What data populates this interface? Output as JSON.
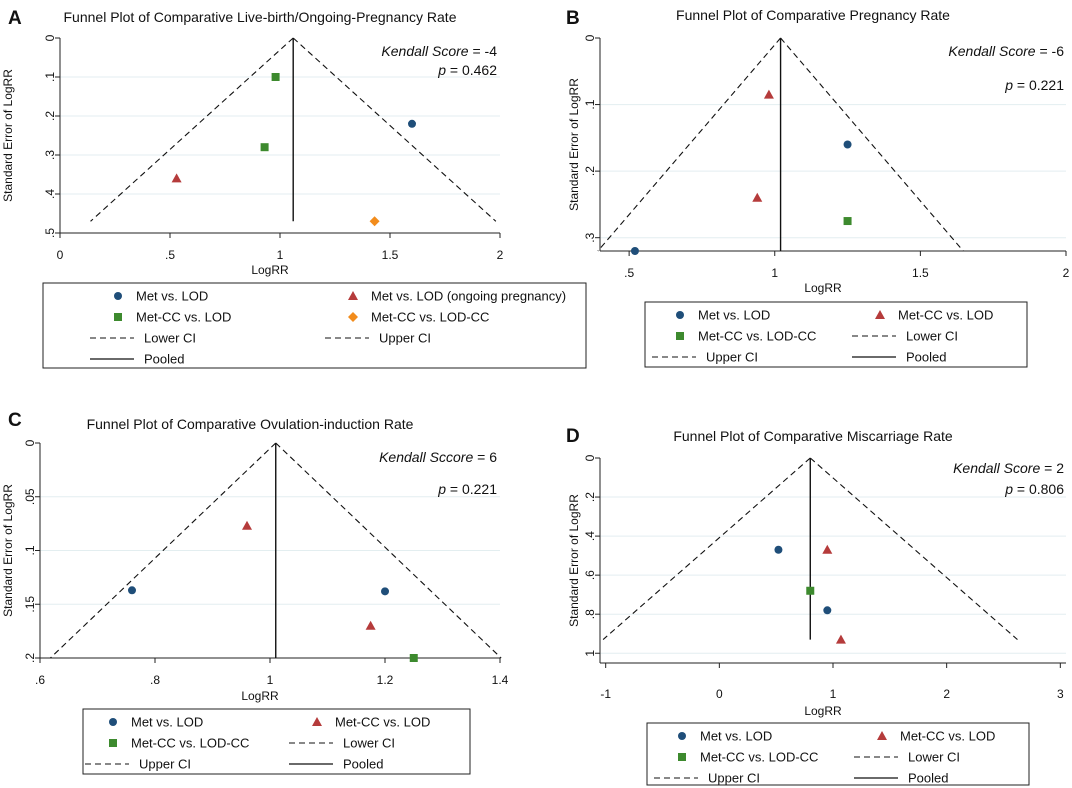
{
  "chart_data": [
    {
      "panel_label": "A",
      "type": "scatter",
      "title": "Funnel Plot of Comparative Live-birth/Ongoing-Pregnancy Rate",
      "xlabel": "LogRR",
      "ylabel": "Standard Error of LogRR",
      "xlim": [
        0,
        2
      ],
      "ylim": [
        0,
        0.5
      ],
      "xticks": [
        "0",
        ".5",
        "1",
        "1.5",
        "2"
      ],
      "yticks": [
        "0",
        ".1",
        ".2",
        ".3",
        ".4",
        ".5"
      ],
      "annotation": {
        "kendall_label": "Kendall Score",
        "kendall_value": "= -4",
        "p_label": "p",
        "p_value": "= 0.462"
      },
      "pooled": 1.06,
      "funnel_bottom": 0.47,
      "series": [
        {
          "name": "Met vs. LOD",
          "marker": "circle",
          "color": "#1f4e79",
          "points": [
            [
              1.6,
              0.22
            ]
          ]
        },
        {
          "name": "Met vs. LOD (ongoing pregnancy)",
          "marker": "triangle",
          "color": "#b53b3b",
          "points": [
            [
              0.53,
              0.36
            ]
          ]
        },
        {
          "name": "Met-CC vs. LOD",
          "marker": "square",
          "color": "#3d8a2e",
          "points": [
            [
              0.98,
              0.1
            ],
            [
              0.93,
              0.28
            ]
          ]
        },
        {
          "name": "Met-CC vs. LOD-CC",
          "marker": "diamond",
          "color": "#f28c1c",
          "points": [
            [
              1.43,
              0.47
            ]
          ]
        }
      ],
      "legend": [
        "Met vs. LOD",
        "Met vs. LOD (ongoing pregnancy)",
        "Met-CC vs. LOD",
        "Met-CC vs. LOD-CC",
        "Lower CI",
        "Upper CI",
        "Pooled"
      ]
    },
    {
      "panel_label": "B",
      "type": "scatter",
      "title": "Funnel Plot of Comparative Pregnancy Rate",
      "xlabel": "LogRR",
      "ylabel": "Standard Error of LogRR",
      "xlim": [
        0.4,
        2
      ],
      "ylim": [
        0,
        0.32
      ],
      "xticks": [
        ".5",
        "1",
        "1.5",
        "2"
      ],
      "yticks": [
        "0",
        ".1",
        ".2",
        ".3"
      ],
      "annotation": {
        "kendall_label": "Kendall Score",
        "kendall_value": "= -6",
        "p_label": "p",
        "p_value": "= 0.221"
      },
      "pooled": 1.02,
      "funnel_bottom": 0.32,
      "series": [
        {
          "name": "Met vs. LOD",
          "marker": "circle",
          "color": "#1f4e79",
          "points": [
            [
              1.25,
              0.16
            ],
            [
              0.52,
              0.32
            ]
          ]
        },
        {
          "name": "Met-CC vs. LOD",
          "marker": "triangle",
          "color": "#b53b3b",
          "points": [
            [
              0.98,
              0.085
            ],
            [
              0.94,
              0.24
            ]
          ]
        },
        {
          "name": "Met-CC vs. LOD-CC",
          "marker": "square",
          "color": "#3d8a2e",
          "points": [
            [
              1.25,
              0.275
            ]
          ]
        }
      ],
      "legend": [
        "Met vs. LOD",
        "Met-CC vs. LOD",
        "Met-CC vs. LOD-CC",
        "Lower CI",
        "Upper CI",
        "Pooled"
      ]
    },
    {
      "panel_label": "C",
      "type": "scatter",
      "title": "Funnel Plot of Comparative Ovulation-induction Rate",
      "xlabel": "LogRR",
      "ylabel": "Standard Error of LogRR",
      "xlim": [
        0.6,
        1.4
      ],
      "ylim": [
        0,
        0.2
      ],
      "xticks": [
        ".6",
        ".8",
        "1",
        "1.2",
        "1.4"
      ],
      "yticks": [
        "0",
        ".05",
        ".1",
        ".15",
        ".2"
      ],
      "annotation": {
        "kendall_label": "Kendall Sccore",
        "kendall_value": "= 6",
        "p_label": "p",
        "p_value": "= 0.221"
      },
      "pooled": 1.01,
      "funnel_bottom": 0.2,
      "series": [
        {
          "name": "Met vs. LOD",
          "marker": "circle",
          "color": "#1f4e79",
          "points": [
            [
              0.76,
              0.137
            ],
            [
              1.2,
              0.138
            ]
          ]
        },
        {
          "name": "Met-CC vs. LOD",
          "marker": "triangle",
          "color": "#b53b3b",
          "points": [
            [
              0.96,
              0.077
            ],
            [
              1.175,
              0.17
            ]
          ]
        },
        {
          "name": "Met-CC vs. LOD-CC",
          "marker": "square",
          "color": "#3d8a2e",
          "points": [
            [
              1.25,
              0.2
            ]
          ]
        }
      ],
      "legend": [
        "Met vs. LOD",
        "Met-CC vs. LOD",
        "Met-CC vs. LOD-CC",
        "Lower CI",
        "Upper CI",
        "Pooled"
      ]
    },
    {
      "panel_label": "D",
      "type": "scatter",
      "title": "Funnel Plot of Comparative Miscarriage Rate",
      "xlabel": "LogRR",
      "ylabel": "Standard Error of LogRR",
      "xlim": [
        -1.05,
        3.05
      ],
      "ylim": [
        0,
        1.05
      ],
      "xticks": [
        "-1",
        "0",
        "1",
        "2",
        "3"
      ],
      "yticks": [
        "0",
        ".2",
        ".4",
        ".6",
        ".8",
        "1"
      ],
      "annotation": {
        "kendall_label": "Kendall Score",
        "kendall_value": "= 2",
        "p_label": "p",
        "p_value": "= 0.806"
      },
      "pooled": 0.8,
      "funnel_bottom": 0.93,
      "series": [
        {
          "name": "Met vs. LOD",
          "marker": "circle",
          "color": "#1f4e79",
          "points": [
            [
              0.52,
              0.47
            ],
            [
              0.95,
              0.78
            ]
          ]
        },
        {
          "name": "Met-CC vs. LOD",
          "marker": "triangle",
          "color": "#b53b3b",
          "points": [
            [
              0.95,
              0.47
            ],
            [
              1.07,
              0.93
            ]
          ]
        },
        {
          "name": "Met-CC vs. LOD-CC",
          "marker": "square",
          "color": "#3d8a2e",
          "points": [
            [
              0.8,
              0.68
            ]
          ]
        }
      ],
      "legend": [
        "Met vs. LOD",
        "Met-CC vs. LOD",
        "Met-CC vs. LOD-CC",
        "Lower CI",
        "Upper CI",
        "Pooled"
      ]
    }
  ]
}
